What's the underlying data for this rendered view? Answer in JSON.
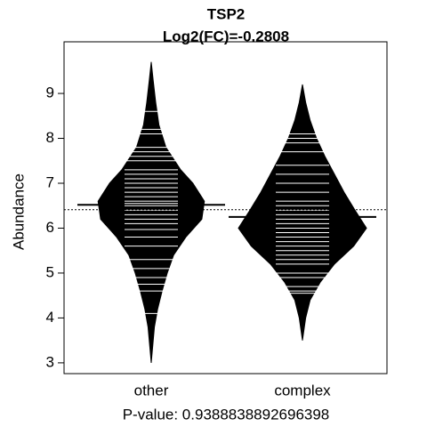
{
  "chart_data": {
    "type": "beanplot",
    "title": "TSP2",
    "subtitle": "Log2(FC)=-0.2808",
    "x_label": "P-value: 0.9388838892696398",
    "y_label": "Abundance",
    "categories": [
      "other",
      "complex"
    ],
    "color": "#000000",
    "point_color": "#ffffff",
    "ylim": [
      2.76,
      10.15
    ],
    "yticks": [
      3,
      4,
      5,
      6,
      7,
      8,
      9
    ],
    "overall_mean": 6.41,
    "groups": [
      {
        "mean": 6.52,
        "points": [
          8.6,
          8.2,
          8.1,
          7.8,
          7.7,
          7.6,
          7.5,
          7.3,
          7.2,
          7.1,
          7.0,
          6.9,
          6.8,
          6.7,
          6.6,
          6.55,
          6.5,
          6.4,
          6.3,
          6.2,
          6.1,
          5.97,
          5.8,
          5.6,
          5.3,
          5.1,
          4.9,
          4.75,
          4.6,
          4.1
        ],
        "density_y": [
          9.7,
          9.3,
          8.8,
          8.3,
          7.8,
          7.3,
          7.0,
          6.6,
          6.2,
          5.8,
          5.4,
          5.0,
          4.6,
          4.2,
          3.8,
          3.4,
          3.0
        ],
        "density": [
          0,
          0.03,
          0.07,
          0.12,
          0.23,
          0.46,
          0.65,
          0.83,
          0.79,
          0.54,
          0.35,
          0.25,
          0.17,
          0.1,
          0.05,
          0.025,
          0
        ]
      },
      {
        "mean": 6.25,
        "points": [
          8.1,
          8.0,
          7.9,
          7.7,
          7.4,
          7.2,
          7.0,
          6.8,
          6.6,
          6.5,
          6.4,
          6.3,
          6.2,
          6.1,
          6.0,
          5.9,
          5.8,
          5.7,
          5.6,
          5.5,
          5.4,
          5.3,
          5.2,
          5.0,
          4.9,
          4.7,
          4.6,
          4.55
        ],
        "density_y": [
          9.2,
          8.8,
          8.4,
          8.0,
          7.6,
          7.2,
          6.8,
          6.4,
          6.0,
          5.6,
          5.2,
          4.8,
          4.4,
          4.0,
          3.5
        ],
        "density": [
          0,
          0.05,
          0.12,
          0.22,
          0.35,
          0.5,
          0.65,
          0.82,
          1.0,
          0.8,
          0.5,
          0.28,
          0.12,
          0.05,
          0
        ]
      }
    ]
  }
}
